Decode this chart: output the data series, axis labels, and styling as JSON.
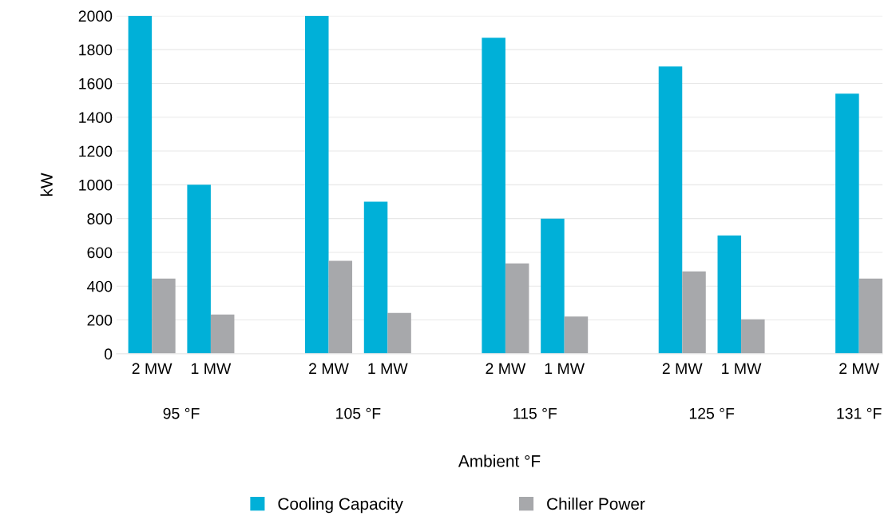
{
  "chart_data": {
    "type": "bar",
    "xlabel": "Ambient °F",
    "ylabel": "kW",
    "categories": [
      "2 MW",
      "1 MW",
      null,
      "2 MW",
      "1 MW",
      null,
      "2 MW",
      "1 MW",
      null,
      "2 MW",
      "1 MW",
      null,
      "2 MW"
    ],
    "series": [
      {
        "name": "Cooling Capacity",
        "color": "#00b0d8",
        "values": [
          2000,
          1000,
          null,
          2000,
          900,
          null,
          1870,
          800,
          null,
          1700,
          700,
          null,
          1540
        ]
      },
      {
        "name": "Chiller Power",
        "color": "#a7a8ab",
        "values": [
          445,
          232,
          null,
          550,
          242,
          null,
          535,
          220,
          null,
          488,
          204,
          null,
          445
        ]
      }
    ],
    "annotations": [
      "95 °F",
      "105 °F",
      "115 °F",
      "125 °F",
      "131 °F"
    ],
    "ylim": [
      0,
      2000
    ],
    "yticks": [
      0,
      200,
      400,
      600,
      800,
      1000,
      1200,
      1400,
      1600,
      1800,
      2000
    ],
    "grid": "y",
    "legend": "bottom"
  }
}
